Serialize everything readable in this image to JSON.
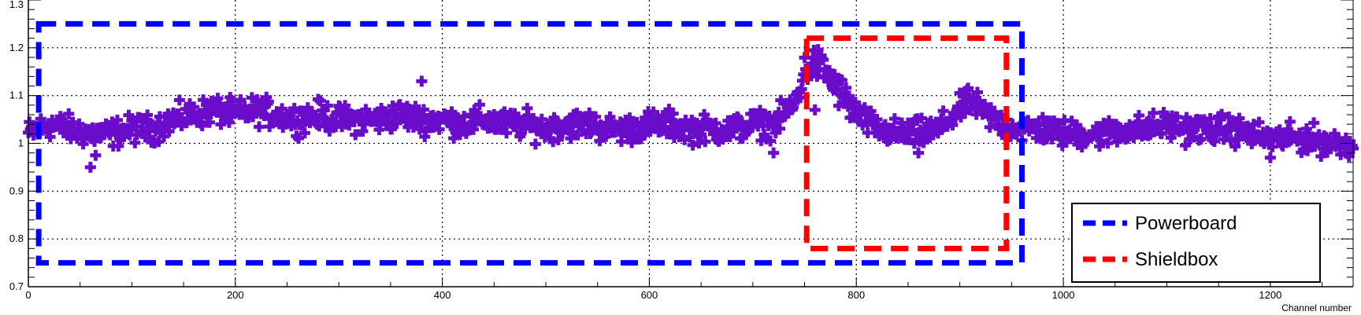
{
  "chart_data": {
    "type": "scatter",
    "title": "",
    "xlabel": "Channel number",
    "ylabel": "",
    "xlim": [
      0,
      1280
    ],
    "ylim": [
      0.7,
      1.3
    ],
    "x_ticks": [
      "0",
      "200",
      "400",
      "600",
      "800",
      "1000",
      "1200"
    ],
    "y_ticks": [
      "0.7",
      "0.8",
      "0.9",
      "1",
      "1.1",
      "1.2",
      "1.3"
    ],
    "grid": "dotted",
    "marker": "cross",
    "marker_color": "#6a0dca",
    "series": [
      {
        "x": [
          0,
          20,
          40,
          60,
          80,
          100,
          120,
          140,
          160,
          180,
          200,
          220,
          240,
          260,
          280,
          300,
          320,
          340,
          360,
          380,
          400,
          420,
          440,
          460,
          480,
          500,
          520,
          540,
          560,
          580,
          600,
          620,
          640,
          660,
          680,
          700,
          720,
          740,
          750,
          760,
          770,
          780,
          790,
          800,
          820,
          840,
          860,
          880,
          900,
          910,
          920,
          940,
          960,
          980,
          1000,
          1020,
          1040,
          1060,
          1080,
          1100,
          1120,
          1140,
          1160,
          1180,
          1200,
          1220,
          1240,
          1260,
          1280
        ],
        "y": [
          1.02,
          1.04,
          1.03,
          1.02,
          1.02,
          1.03,
          1.03,
          1.05,
          1.06,
          1.07,
          1.06,
          1.07,
          1.06,
          1.05,
          1.06,
          1.05,
          1.05,
          1.05,
          1.06,
          1.05,
          1.05,
          1.04,
          1.05,
          1.04,
          1.04,
          1.03,
          1.04,
          1.04,
          1.03,
          1.03,
          1.04,
          1.04,
          1.03,
          1.03,
          1.03,
          1.04,
          1.04,
          1.08,
          1.15,
          1.17,
          1.15,
          1.12,
          1.09,
          1.06,
          1.03,
          1.02,
          1.02,
          1.03,
          1.07,
          1.09,
          1.07,
          1.04,
          1.03,
          1.03,
          1.02,
          1.02,
          1.02,
          1.03,
          1.03,
          1.04,
          1.03,
          1.03,
          1.03,
          1.02,
          1.01,
          1.01,
          1.01,
          1.0,
          1.0
        ]
      }
    ],
    "outliers": [
      {
        "x": 60,
        "y": 0.95
      },
      {
        "x": 65,
        "y": 0.975
      },
      {
        "x": 380,
        "y": 1.13
      },
      {
        "x": 720,
        "y": 0.98
      },
      {
        "x": 760,
        "y": 1.07
      },
      {
        "x": 860,
        "y": 0.98
      },
      {
        "x": 1200,
        "y": 0.97
      }
    ],
    "regions": [
      {
        "name": "Powerboard",
        "color": "#0000ff",
        "x0": 10,
        "x1": 960,
        "y0": 0.75,
        "y1": 1.25
      },
      {
        "name": "Shieldbox",
        "color": "#ff0000",
        "x0": 752,
        "x1": 945,
        "y0": 0.78,
        "y1": 1.22
      }
    ],
    "legend": {
      "placement": "bottom-right",
      "entries": [
        {
          "label": "Powerboard",
          "color": "#0000ff"
        },
        {
          "label": "Shieldbox",
          "color": "#ff0000"
        }
      ]
    }
  }
}
